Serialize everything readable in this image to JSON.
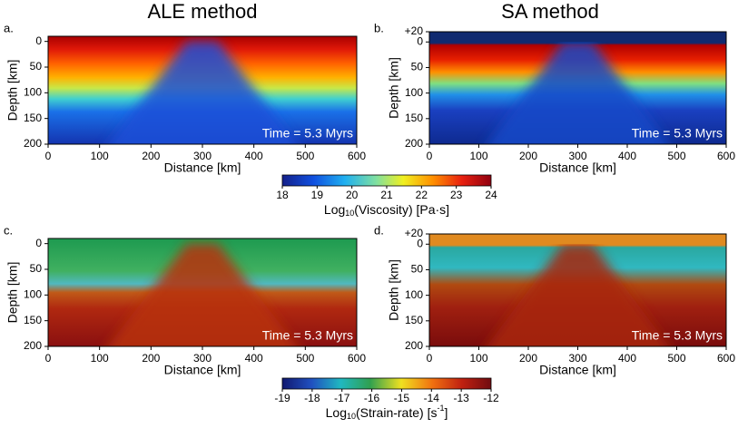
{
  "column_titles": [
    "ALE method",
    "SA method"
  ],
  "panels": [
    {
      "label": "a.",
      "annotation": "Time = 5.3 Myrs",
      "xlabel": "Distance [km]",
      "ylabel": "Depth [km]",
      "xlim": [
        0,
        600
      ],
      "ylim": [
        -10,
        200
      ],
      "xticks": [
        0,
        100,
        200,
        300,
        400,
        500,
        600
      ],
      "yticks": [
        0,
        50,
        100,
        150,
        200
      ]
    },
    {
      "label": "b.",
      "annotation": "Time = 5.3 Myrs",
      "xlabel": "Distance [km]",
      "ylabel": "Depth [km]",
      "xlim": [
        0,
        600
      ],
      "ylim": [
        -20,
        200
      ],
      "xticks": [
        0,
        100,
        200,
        300,
        400,
        500,
        600
      ],
      "yticks": [
        {
          "value": -20,
          "label": "+20"
        },
        0,
        50,
        100,
        150,
        200
      ]
    },
    {
      "label": "c.",
      "annotation": "Time = 5.3 Myrs",
      "xlabel": "Distance [km]",
      "ylabel": "Depth [km]",
      "xlim": [
        0,
        600
      ],
      "ylim": [
        -10,
        200
      ],
      "xticks": [
        0,
        100,
        200,
        300,
        400,
        500,
        600
      ],
      "yticks": [
        0,
        50,
        100,
        150,
        200
      ]
    },
    {
      "label": "d.",
      "annotation": "Time = 5.3 Myrs",
      "xlabel": "Distance [km]",
      "ylabel": "Depth [km]",
      "xlim": [
        0,
        600
      ],
      "ylim": [
        -20,
        200
      ],
      "xticks": [
        0,
        100,
        200,
        300,
        400,
        500,
        600
      ],
      "yticks": [
        {
          "value": -20,
          "label": "+20"
        },
        0,
        50,
        100,
        150,
        200
      ]
    }
  ],
  "colorbars": [
    {
      "label_parts": [
        "Log",
        "10",
        "(Viscosity) [Pa·s]"
      ],
      "lim": [
        18,
        24
      ],
      "ticks": [
        18,
        19,
        20,
        21,
        22,
        23,
        24
      ]
    },
    {
      "label_parts": [
        "Log",
        "10",
        "(Strain-rate) [s",
        "-1",
        "]"
      ],
      "lim": [
        -19,
        -12
      ],
      "ticks": [
        -19,
        -18,
        -17,
        -16,
        -15,
        -14,
        -13,
        -12
      ]
    }
  ]
}
